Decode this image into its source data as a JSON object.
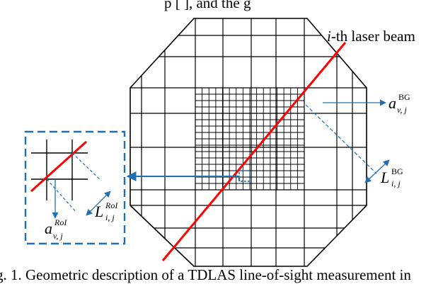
{
  "text": {
    "top_fragment": "p [  ], and the   g",
    "caption": "g. 1.  Geometric description of a TDLAS line-of-sight measurement in"
  },
  "labels": {
    "laser_italic": "i",
    "laser_rest": "-th laser beam",
    "a_bg_main": "a",
    "a_bg_sup": "BG",
    "a_bg_sub": "v, j",
    "l_bg_main": "L",
    "l_bg_sup": "BG",
    "l_bg_sub": "i, j",
    "a_roi_main": "a",
    "a_roi_sup": "RoI",
    "a_roi_sub": "v, j",
    "l_roi_main": "L",
    "l_roi_sup": "RoI",
    "l_roi_sub": "i, j"
  },
  "colors": {
    "laser": "#ff0000",
    "annotation": "#1f6fb5",
    "grid": "#000000"
  }
}
